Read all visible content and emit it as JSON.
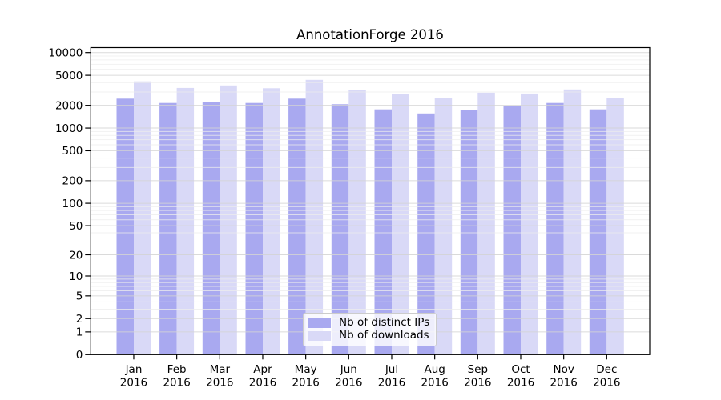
{
  "chart_data": {
    "type": "bar",
    "title": "AnnotationForge 2016",
    "categories": [
      "Jan",
      "Feb",
      "Mar",
      "Apr",
      "May",
      "Jun",
      "Jul",
      "Aug",
      "Sep",
      "Oct",
      "Nov",
      "Dec"
    ],
    "x_year_label": "2016",
    "series": [
      {
        "name": "Nb of distinct IPs",
        "color": "#a9a9f0",
        "values": [
          2450,
          2150,
          2230,
          2150,
          2450,
          2070,
          1770,
          1560,
          1720,
          1950,
          2150,
          1770
        ]
      },
      {
        "name": "Nb of downloads",
        "color": "#d9d9f7",
        "values": [
          4150,
          3400,
          3670,
          3370,
          4350,
          3200,
          2840,
          2480,
          2940,
          2870,
          3250,
          2480
        ]
      }
    ],
    "y_scale": "log10(value+1)",
    "ylim": [
      0,
      11500
    ],
    "y_ticks": [
      0,
      1,
      2,
      5,
      10,
      20,
      50,
      100,
      200,
      500,
      1000,
      2000,
      5000,
      10000
    ],
    "y_minor_ticks": [
      3,
      4,
      6,
      7,
      8,
      9,
      30,
      40,
      60,
      70,
      80,
      90,
      300,
      400,
      600,
      700,
      800,
      900,
      3000,
      4000,
      6000,
      7000,
      8000,
      9000
    ],
    "grid": "horizontal major and minor gridlines, drawn over bars",
    "legend_position": "lower center",
    "colors": {
      "grid_major": "#d4d4d4",
      "grid_minor": "#ededed",
      "axis": "#000000",
      "text": "#000000",
      "background": "#ffffff"
    }
  }
}
